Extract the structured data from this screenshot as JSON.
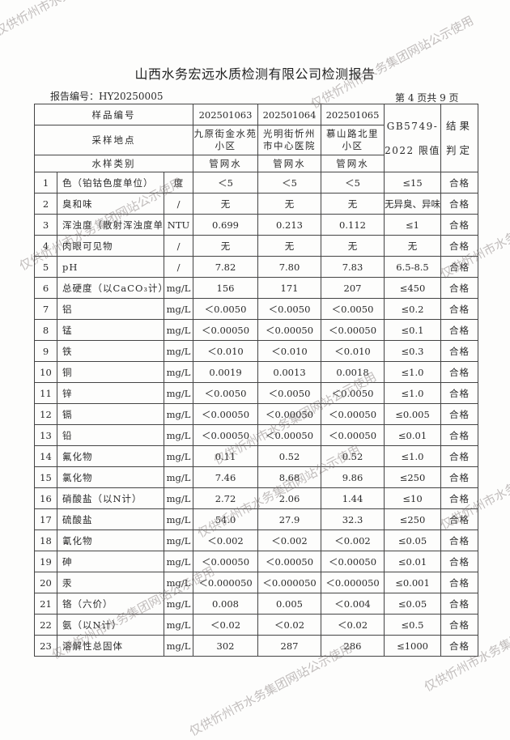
{
  "header": {
    "title": "山西水务宏远水质检测有限公司检测报告",
    "report_no": "报告编号：HY20250005",
    "page_no": "第 4 页共 9 页"
  },
  "table": {
    "labels": {
      "sample_no": "样品编号",
      "site": "采样地点",
      "type": "水样类别",
      "limit": "GB5749-2022 限值",
      "result": "结果判定"
    },
    "samples": [
      {
        "no": "202501063",
        "site": "九原街金水苑小区",
        "type": "管网水"
      },
      {
        "no": "202501064",
        "site": "光明街忻州市中心医院",
        "type": "管网水"
      },
      {
        "no": "202501065",
        "site": "慕山路北里小区",
        "type": "管网水"
      }
    ],
    "rows": [
      [
        "1",
        "色（铂钴色度单位）",
        "度",
        "＜5",
        "＜5",
        "＜5",
        "≤15",
        "合格"
      ],
      [
        "2",
        "臭和味",
        "/",
        "无",
        "无",
        "无",
        "无异臭、异味",
        "合格"
      ],
      [
        "3",
        "浑浊度（散射浑浊度单位）",
        "NTU",
        "0.699",
        "0.213",
        "0.112",
        "≤1",
        "合格"
      ],
      [
        "4",
        "肉眼可见物",
        "/",
        "无",
        "无",
        "无",
        "无",
        "合格"
      ],
      [
        "5",
        "pH",
        "/",
        "7.82",
        "7.80",
        "7.83",
        "6.5-8.5",
        "合格"
      ],
      [
        "6",
        "总硬度（以CaCO₃计）",
        "mg/L",
        "156",
        "171",
        "207",
        "≤450",
        "合格"
      ],
      [
        "7",
        "铝",
        "mg/L",
        "＜0.0050",
        "＜0.0050",
        "＜0.0050",
        "≤0.2",
        "合格"
      ],
      [
        "8",
        "锰",
        "mg/L",
        "＜0.00050",
        "＜0.00050",
        "＜0.00050",
        "≤0.1",
        "合格"
      ],
      [
        "9",
        "铁",
        "mg/L",
        "＜0.010",
        "＜0.010",
        "＜0.010",
        "≤0.3",
        "合格"
      ],
      [
        "10",
        "铜",
        "mg/L",
        "0.0019",
        "0.0013",
        "0.0018",
        "≤1.0",
        "合格"
      ],
      [
        "11",
        "锌",
        "mg/L",
        "＜0.0050",
        "＜0.0050",
        "＜0.0050",
        "≤1.0",
        "合格"
      ],
      [
        "12",
        "镉",
        "mg/L",
        "＜0.00050",
        "＜0.00050",
        "＜0.00050",
        "≤0.005",
        "合格"
      ],
      [
        "13",
        "铅",
        "mg/L",
        "＜0.00050",
        "＜0.00050",
        "＜0.00050",
        "≤0.01",
        "合格"
      ],
      [
        "14",
        "氟化物",
        "mg/L",
        "0.11",
        "0.52",
        "0.52",
        "≤1.0",
        "合格"
      ],
      [
        "15",
        "氯化物",
        "mg/L",
        "7.46",
        "8.68",
        "9.86",
        "≤250",
        "合格"
      ],
      [
        "16",
        "硝酸盐（以N计）",
        "mg/L",
        "2.72",
        "2.06",
        "1.44",
        "≤10",
        "合格"
      ],
      [
        "17",
        "硫酸盐",
        "mg/L",
        "54.0",
        "27.9",
        "32.3",
        "≤250",
        "合格"
      ],
      [
        "18",
        "氰化物",
        "mg/L",
        "＜0.002",
        "＜0.002",
        "＜0.002",
        "≤0.05",
        "合格"
      ],
      [
        "19",
        "砷",
        "mg/L",
        "＜0.00050",
        "＜0.00050",
        "＜0.00050",
        "≤0.01",
        "合格"
      ],
      [
        "20",
        "汞",
        "mg/L",
        "＜0.000050",
        "＜0.000050",
        "＜0.000050",
        "≤0.001",
        "合格"
      ],
      [
        "21",
        "铬（六价）",
        "mg/L",
        "0.008",
        "0.005",
        "＜0.004",
        "≤0.05",
        "合格"
      ],
      [
        "22",
        "氨（以N计）",
        "mg/L",
        "＜0.02",
        "＜0.02",
        "＜0.02",
        "≤0.5",
        "合格"
      ],
      [
        "23",
        "溶解性总固体",
        "mg/L",
        "302",
        "287",
        "286",
        "≤1000",
        "合格"
      ]
    ]
  },
  "watermark": "仅供忻州市水务集团网站公示使用"
}
